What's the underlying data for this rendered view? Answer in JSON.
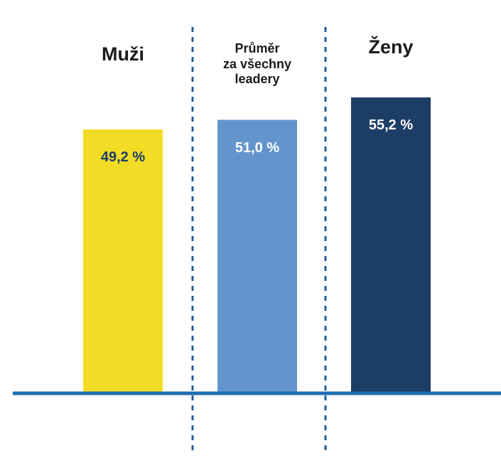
{
  "chart_data": {
    "type": "bar",
    "categories": [
      "Muži",
      "Průměr\nza všechny\nleadery",
      "Ženy"
    ],
    "values": [
      49.2,
      51.0,
      55.2
    ],
    "value_labels": [
      "49,2 %",
      "51,0 %",
      "55,2 %"
    ],
    "colors": [
      "#f2dc26",
      "#6395cc",
      "#1c3d66"
    ],
    "value_label_colors": [
      "#1c3d66",
      "#ffffff",
      "#ffffff"
    ],
    "baseline_color": "#1f6db3",
    "divider_color": "#1f5f99",
    "title": "",
    "xlabel": "",
    "ylabel": "",
    "ylim": [
      0,
      55.2
    ]
  }
}
